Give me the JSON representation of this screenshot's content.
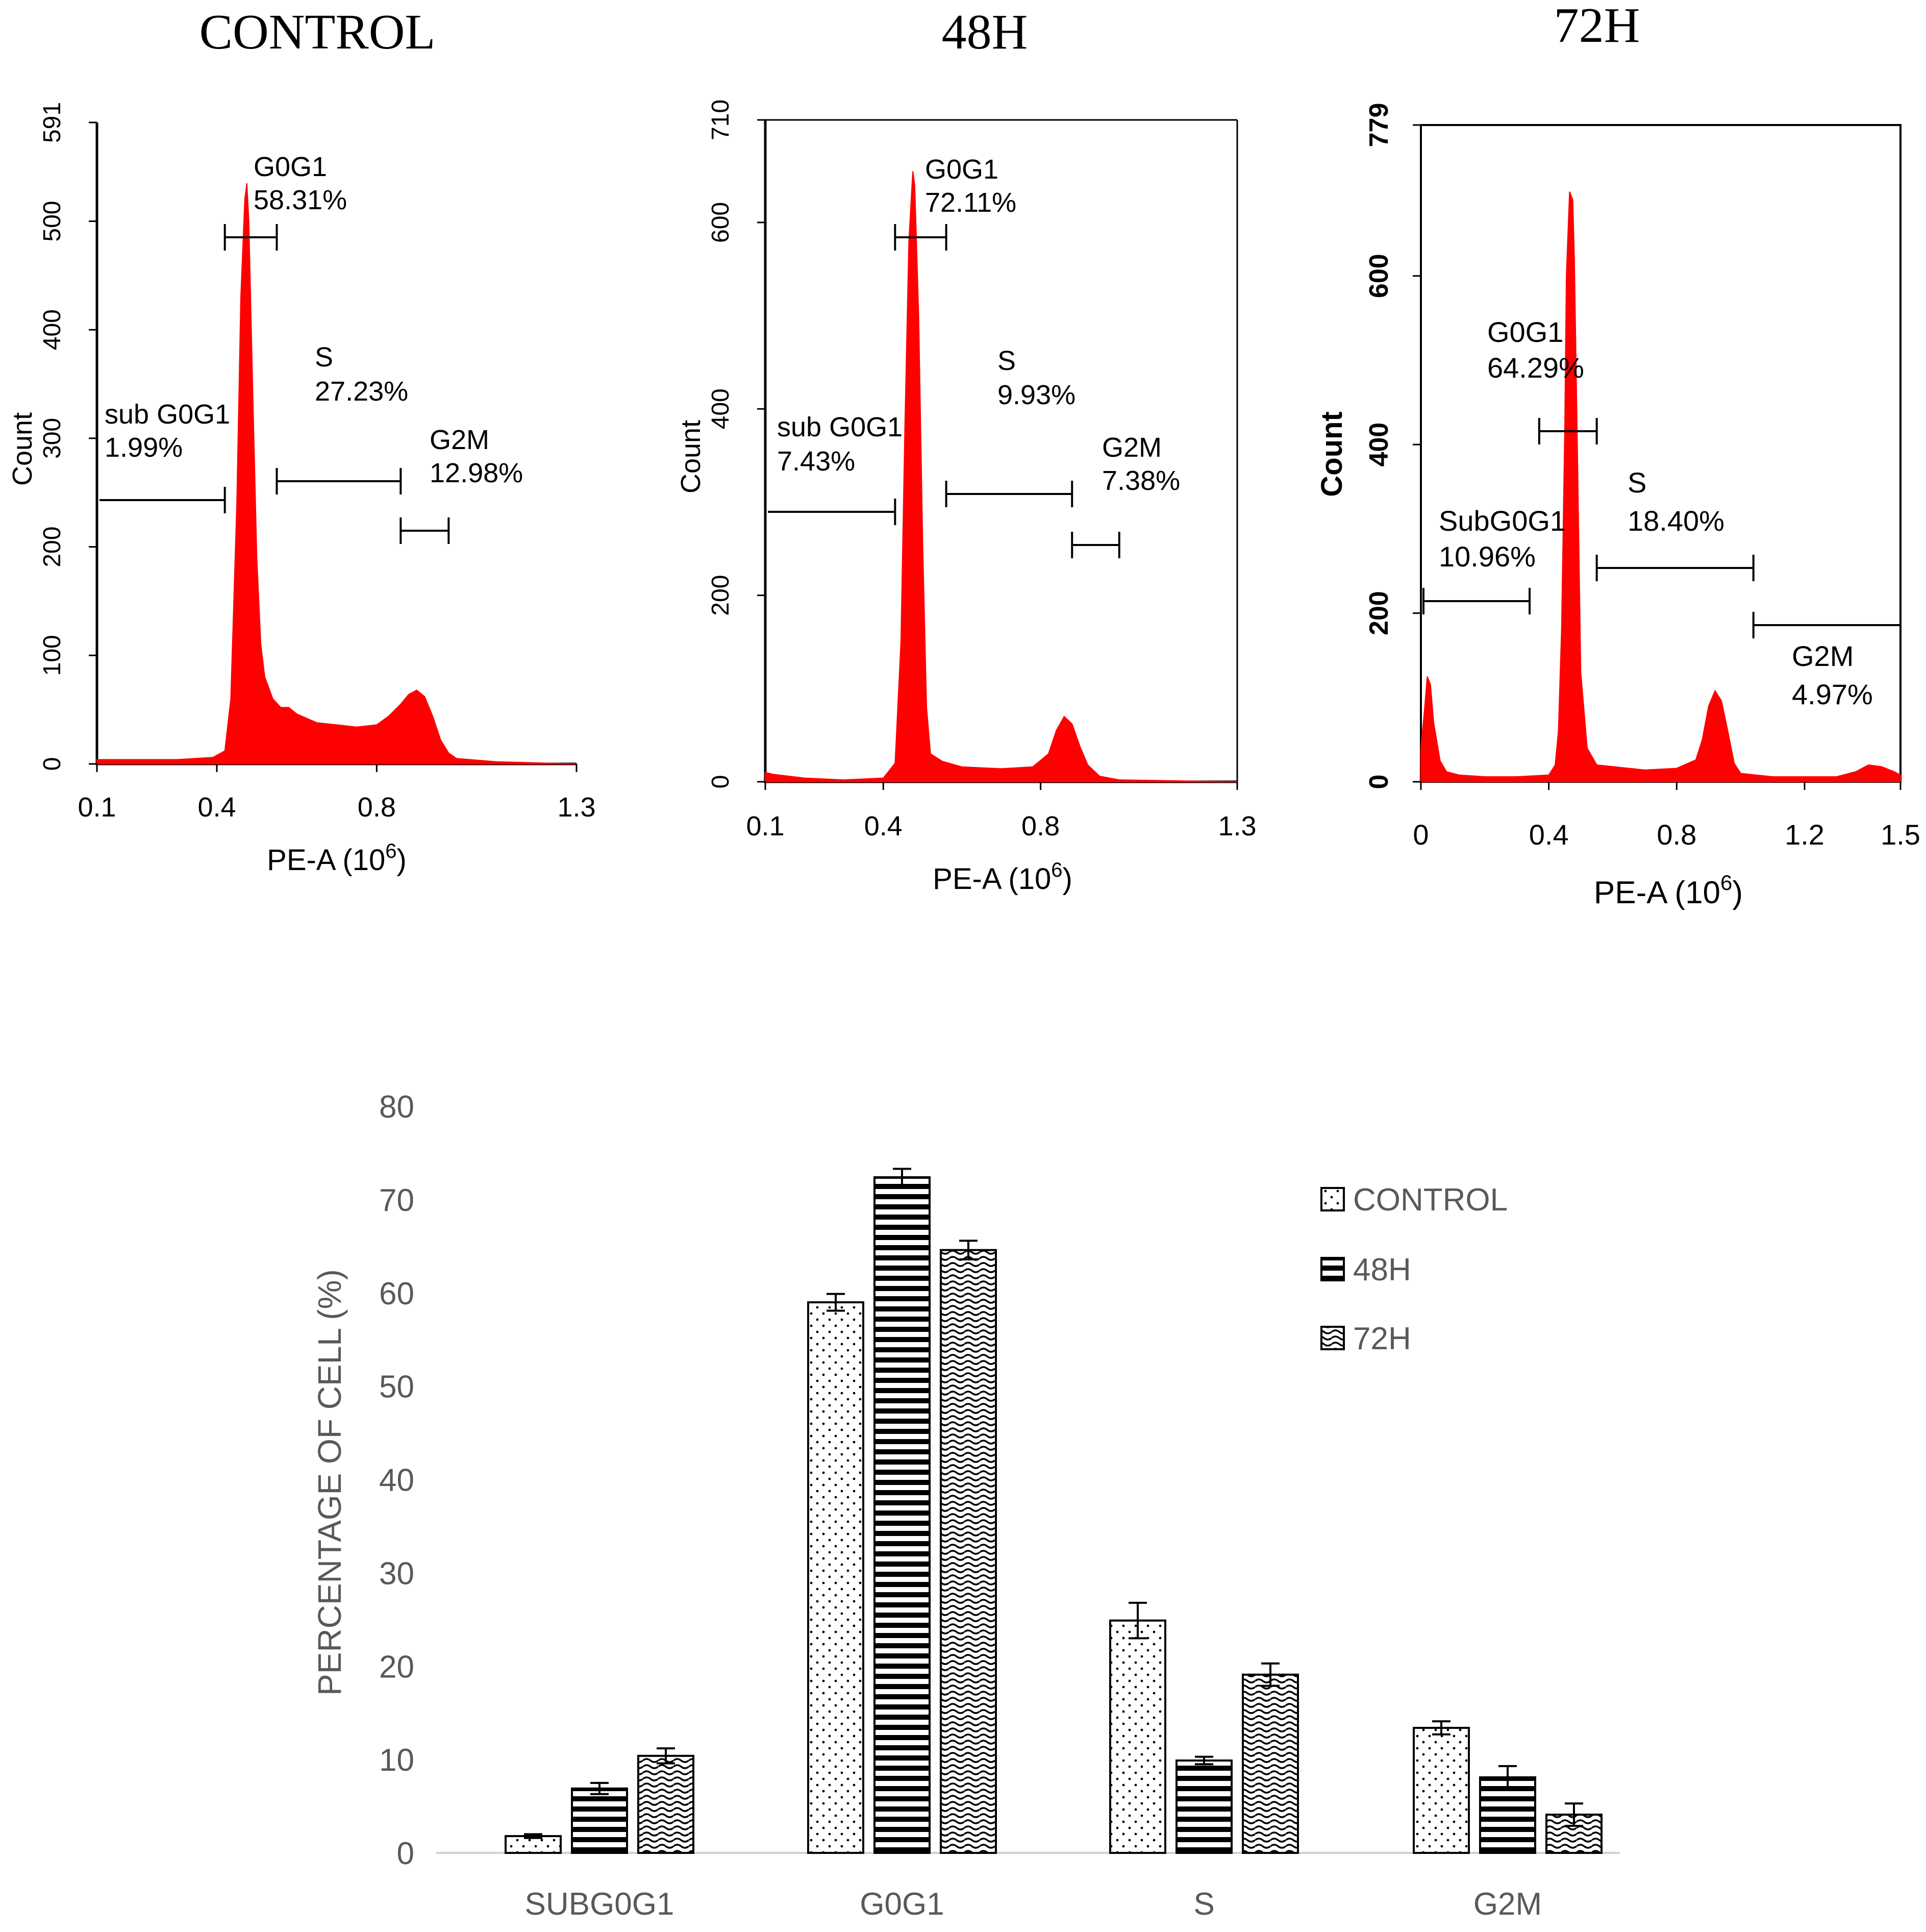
{
  "colors": {
    "histogram_fill": "#ff0000",
    "axis": "#000000",
    "bar_axis_text": "#595959",
    "bar_stroke": "#000000"
  },
  "chart_data": [
    {
      "type": "area",
      "title": "CONTROL",
      "xlabel": "PE-A (10",
      "xlabel_sup": "6",
      "xlabel_close": ")",
      "ylabel": "Count",
      "xlim": [
        0.1,
        1.3
      ],
      "ylim": [
        0,
        591
      ],
      "xticks": [
        0.1,
        0.4,
        0.8,
        1.3
      ],
      "xtick_labels": [
        "0.1",
        "0.4",
        "0.8",
        "1.3"
      ],
      "yticks": [
        0,
        100,
        200,
        300,
        400,
        500,
        591
      ],
      "ytick_labels": [
        "0",
        "100",
        "200",
        "300",
        "400",
        "500",
        "591"
      ],
      "series": [
        {
          "name": "Count",
          "x": [
            0.1,
            0.2,
            0.3,
            0.39,
            0.42,
            0.435,
            0.45,
            0.46,
            0.47,
            0.475,
            0.48,
            0.49,
            0.5,
            0.51,
            0.52,
            0.54,
            0.56,
            0.58,
            0.6,
            0.65,
            0.7,
            0.75,
            0.8,
            0.83,
            0.86,
            0.88,
            0.9,
            0.92,
            0.94,
            0.96,
            0.98,
            1.0,
            1.1,
            1.3
          ],
          "y": [
            4,
            4,
            4,
            6,
            12,
            60,
            240,
            430,
            520,
            535,
            500,
            340,
            190,
            110,
            80,
            60,
            52,
            52,
            46,
            38,
            36,
            34,
            36,
            44,
            55,
            64,
            68,
            62,
            44,
            22,
            10,
            5,
            2,
            0
          ]
        }
      ],
      "phases": [
        {
          "name": "sub G0G1",
          "percent": "1.99%",
          "range": [
            0.1,
            0.42
          ]
        },
        {
          "name": "G0G1",
          "percent": "58.31%",
          "range": [
            0.42,
            0.55
          ]
        },
        {
          "name": "S",
          "percent": "27.23%",
          "range": [
            0.55,
            0.86
          ]
        },
        {
          "name": "G2M",
          "percent": "12.98%",
          "range": [
            0.86,
            0.98
          ]
        }
      ]
    },
    {
      "type": "area",
      "title": "48H",
      "xlabel": "PE-A (10",
      "xlabel_sup": "6",
      "xlabel_close": ")",
      "ylabel": "Count",
      "xlim": [
        0.1,
        1.3
      ],
      "ylim": [
        0,
        710
      ],
      "xticks": [
        0.1,
        0.4,
        0.8,
        1.3
      ],
      "xtick_labels": [
        "0.1",
        "0.4",
        "0.8",
        "1.3"
      ],
      "yticks": [
        0,
        200,
        400,
        600,
        710
      ],
      "ytick_labels": [
        "0",
        "200",
        "400",
        "600",
        "710"
      ],
      "series": [
        {
          "name": "Count",
          "x": [
            0.1,
            0.12,
            0.2,
            0.3,
            0.4,
            0.43,
            0.445,
            0.455,
            0.465,
            0.475,
            0.48,
            0.49,
            0.5,
            0.51,
            0.52,
            0.55,
            0.6,
            0.7,
            0.78,
            0.82,
            0.84,
            0.86,
            0.88,
            0.9,
            0.92,
            0.95,
            1.0,
            1.3
          ],
          "y": [
            10,
            8,
            4,
            2,
            4,
            20,
            150,
            380,
            580,
            655,
            640,
            500,
            260,
            80,
            30,
            22,
            16,
            14,
            16,
            30,
            55,
            70,
            62,
            38,
            18,
            6,
            2,
            0
          ]
        }
      ],
      "phases": [
        {
          "name": "sub G0G1",
          "percent": "7.43%",
          "range": [
            0.1,
            0.43
          ]
        },
        {
          "name": "G0G1",
          "percent": "72.11%",
          "range": [
            0.43,
            0.56
          ]
        },
        {
          "name": "S",
          "percent": "9.93%",
          "range": [
            0.56,
            0.88
          ]
        },
        {
          "name": "G2M",
          "percent": "7.38%",
          "range": [
            0.88,
            1.0
          ]
        }
      ]
    },
    {
      "type": "area",
      "title": "72H",
      "xlabel": "PE-A (10",
      "xlabel_sup": "6",
      "xlabel_close": ")",
      "ylabel": "Count",
      "xlim": [
        0,
        1.5
      ],
      "ylim": [
        0,
        779
      ],
      "xticks": [
        0,
        0.4,
        0.8,
        1.2,
        1.5
      ],
      "xtick_labels": [
        "0",
        "0.4",
        "0.8",
        "1.2",
        "1.5"
      ],
      "yticks": [
        0,
        200,
        400,
        600,
        779
      ],
      "ytick_labels": [
        "0",
        "200",
        "400",
        "600",
        "779"
      ],
      "series": [
        {
          "name": "Count",
          "x": [
            0,
            0.01,
            0.02,
            0.03,
            0.04,
            0.06,
            0.08,
            0.12,
            0.2,
            0.3,
            0.4,
            0.42,
            0.43,
            0.44,
            0.45,
            0.455,
            0.465,
            0.475,
            0.48,
            0.49,
            0.5,
            0.52,
            0.55,
            0.6,
            0.7,
            0.8,
            0.86,
            0.88,
            0.9,
            0.92,
            0.94,
            0.96,
            0.98,
            1.0,
            1.1,
            1.3,
            1.36,
            1.4,
            1.44,
            1.48,
            1.5
          ],
          "y": [
            40,
            80,
            125,
            115,
            70,
            25,
            12,
            8,
            6,
            6,
            8,
            20,
            60,
            180,
            420,
            600,
            700,
            690,
            620,
            380,
            130,
            40,
            20,
            18,
            14,
            16,
            26,
            50,
            90,
            108,
            96,
            60,
            22,
            10,
            6,
            6,
            12,
            20,
            18,
            12,
            8
          ]
        }
      ],
      "phases": [
        {
          "name": "SubG0G1",
          "percent": "10.96%",
          "range": [
            0.01,
            0.34
          ]
        },
        {
          "name": "G0G1",
          "percent": "64.29%",
          "range": [
            0.37,
            0.55
          ]
        },
        {
          "name": "S",
          "percent": "18.40%",
          "range": [
            0.55,
            1.04
          ]
        },
        {
          "name": "G2M",
          "percent": "4.97%",
          "range": [
            1.04,
            1.5
          ]
        }
      ]
    },
    {
      "type": "bar",
      "title": "",
      "xlabel": "",
      "ylabel": "PERCENTAGE OF CELL (%)",
      "categories": [
        "SUBG0G1",
        "G0G1",
        "S",
        "G2M"
      ],
      "ylim": [
        0,
        80
      ],
      "yticks": [
        0,
        10,
        20,
        30,
        40,
        50,
        60,
        70,
        80
      ],
      "ytick_labels": [
        "0",
        "10",
        "20",
        "30",
        "40",
        "50",
        "60",
        "70",
        "80"
      ],
      "legend_position": "right",
      "series": [
        {
          "name": "CONTROL",
          "pattern": "dots",
          "values": [
            1.8,
            59.0,
            24.9,
            13.4
          ],
          "errors": [
            0.2,
            0.9,
            1.9,
            0.7
          ]
        },
        {
          "name": "48H",
          "pattern": "horizontal-stripes",
          "values": [
            6.9,
            72.4,
            9.9,
            8.1
          ],
          "errors": [
            0.6,
            0.9,
            0.4,
            1.2
          ]
        },
        {
          "name": "72H",
          "pattern": "waves",
          "values": [
            10.4,
            64.6,
            19.1,
            4.1
          ],
          "errors": [
            0.8,
            1.0,
            1.2,
            1.2
          ]
        }
      ]
    }
  ]
}
